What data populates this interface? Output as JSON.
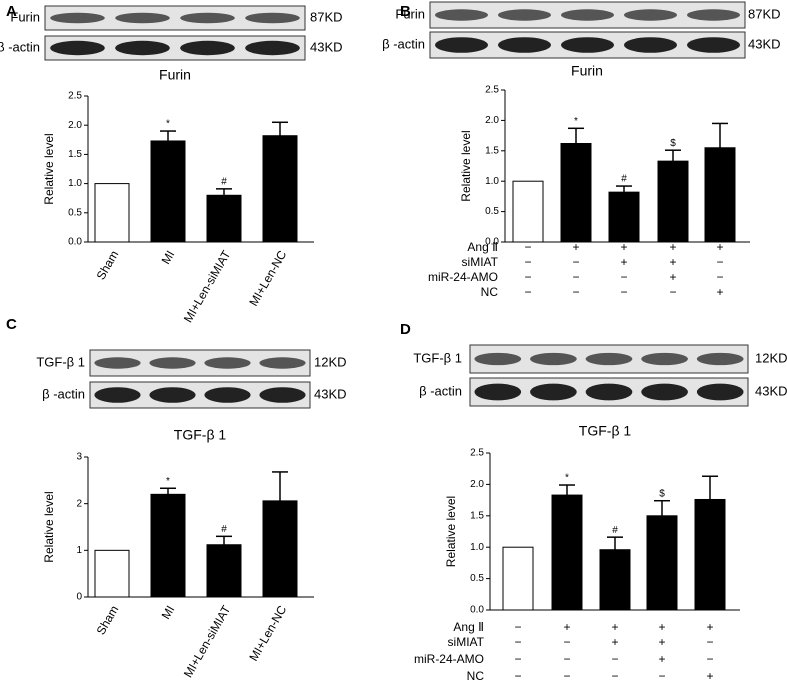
{
  "chart_data": [
    {
      "type": "bar",
      "panel": "A",
      "title": "Furin",
      "y_label": "Relative level",
      "blots": [
        {
          "label": "Furin",
          "size": "87KD"
        },
        {
          "label": "β -actin",
          "size": "43KD"
        }
      ],
      "categories": [
        "Sham",
        "MI",
        "MI+Len-siMIAT",
        "MI+Len-NC"
      ],
      "values": [
        1.0,
        1.73,
        0.8,
        1.82
      ],
      "errors": [
        0,
        0.17,
        0.11,
        0.23
      ],
      "annotations": [
        null,
        "*",
        "#",
        null
      ],
      "colors": [
        "#ffffff",
        "#000000",
        "#000000",
        "#000000"
      ],
      "ylim": [
        0,
        2.5
      ],
      "yticks": [
        {
          "value": 0,
          "label": "0.0"
        },
        0.5,
        {
          "value": 1,
          "label": "1.0"
        },
        1.5,
        {
          "value": 2,
          "label": "2.0"
        },
        2.5
      ]
    },
    {
      "type": "bar",
      "panel": "B",
      "title": "Furin",
      "y_label": "Relative level",
      "blots": [
        {
          "label": "Furin",
          "size": "87KD"
        },
        {
          "label": "β -actin",
          "size": "43KD"
        }
      ],
      "treatments": [
        {
          "name": "Ang Ⅱ",
          "signs": [
            "−",
            "+",
            "+",
            "+",
            "+"
          ]
        },
        {
          "name": "siMIAT",
          "signs": [
            "−",
            "−",
            "+",
            "+",
            "−"
          ]
        },
        {
          "name": "miR-24-AMO",
          "signs": [
            "−",
            "−",
            "−",
            "+",
            "−"
          ]
        },
        {
          "name": "NC",
          "signs": [
            "−",
            "−",
            "−",
            "−",
            "+"
          ]
        }
      ],
      "values": [
        1.0,
        1.62,
        0.82,
        1.33,
        1.55
      ],
      "errors": [
        0,
        0.25,
        0.1,
        0.18,
        0.4
      ],
      "annotations": [
        null,
        "*",
        "#",
        "$",
        null
      ],
      "colors": [
        "#ffffff",
        "#000000",
        "#000000",
        "#000000",
        "#000000"
      ],
      "ylim": [
        0,
        2.5
      ],
      "yticks": [
        {
          "value": 0,
          "label": "0.0"
        },
        0.5,
        {
          "value": 1,
          "label": "1.0"
        },
        1.5,
        {
          "value": 2,
          "label": "2.0"
        },
        2.5
      ]
    },
    {
      "type": "bar",
      "panel": "C",
      "title": "TGF-β 1",
      "y_label": "Relative level",
      "blots": [
        {
          "label": "TGF-β 1",
          "size": "12KD"
        },
        {
          "label": "β -actin",
          "size": "43KD"
        }
      ],
      "categories": [
        "Sham",
        "MI",
        "MI+Len-siMIAT",
        "MI+Len-NC"
      ],
      "values": [
        1.0,
        2.2,
        1.12,
        2.06
      ],
      "errors": [
        0,
        0.13,
        0.18,
        0.62
      ],
      "annotations": [
        null,
        "*",
        "#",
        null
      ],
      "colors": [
        "#ffffff",
        "#000000",
        "#000000",
        "#000000"
      ],
      "ylim": [
        0,
        3
      ],
      "yticks": [
        0,
        1,
        2,
        3
      ]
    },
    {
      "type": "bar",
      "panel": "D",
      "title": "TGF-β 1",
      "y_label": "Relative level",
      "blots": [
        {
          "label": "TGF-β 1",
          "size": "12KD"
        },
        {
          "label": "β -actin",
          "size": "43KD"
        }
      ],
      "treatments": [
        {
          "name": "Ang Ⅱ",
          "signs": [
            "−",
            "+",
            "+",
            "+",
            "+"
          ]
        },
        {
          "name": "siMIAT",
          "signs": [
            "−",
            "−",
            "+",
            "+",
            "−"
          ]
        },
        {
          "name": "miR-24-AMO",
          "signs": [
            "−",
            "−",
            "−",
            "+",
            "−"
          ]
        },
        {
          "name": "NC",
          "signs": [
            "−",
            "−",
            "−",
            "−",
            "+"
          ]
        }
      ],
      "values": [
        1.0,
        1.83,
        0.96,
        1.5,
        1.76
      ],
      "errors": [
        0,
        0.16,
        0.2,
        0.24,
        0.37
      ],
      "annotations": [
        null,
        "*",
        "#",
        "$",
        null
      ],
      "colors": [
        "#ffffff",
        "#000000",
        "#000000",
        "#000000",
        "#000000"
      ],
      "ylim": [
        0,
        2.5
      ],
      "yticks": [
        {
          "value": 0,
          "label": "0.0"
        },
        0.5,
        {
          "value": 1,
          "label": "1.0"
        },
        1.5,
        {
          "value": 2,
          "label": "2.0"
        },
        2.5
      ]
    }
  ]
}
